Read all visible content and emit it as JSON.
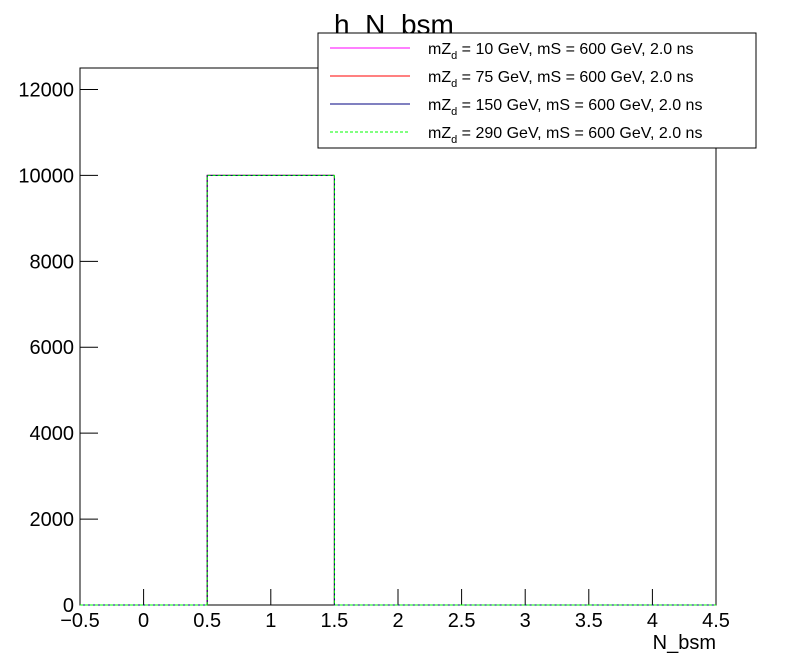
{
  "chart_data": {
    "type": "histogram",
    "title": "h_N_bsm",
    "x_label": "N_bsm",
    "bins": [
      -0.5,
      0.5,
      1.5,
      2.5,
      3.5,
      4.5
    ],
    "series": [
      {
        "name": "mZ_{d} = 10 GeV, mS = 600 GeV, 2.0 ns",
        "color": "#ff00ff",
        "dashed": false,
        "values": [
          0,
          10000,
          0,
          0,
          0
        ]
      },
      {
        "name": "mZ_{d} = 75 GeV, mS = 600 GeV, 2.0 ns",
        "color": "#ff0000",
        "dashed": false,
        "values": [
          0,
          10000,
          0,
          0,
          0
        ]
      },
      {
        "name": "mZ_{d} = 150 GeV, mS = 600 GeV, 2.0 ns",
        "color": "#000080",
        "dashed": false,
        "values": [
          0,
          10000,
          0,
          0,
          0
        ]
      },
      {
        "name": "mZ_{d} = 290 GeV, mS = 600 GeV, 2.0 ns",
        "color": "#00ff00",
        "dashed": true,
        "values": [
          0,
          10000,
          0,
          0,
          0
        ]
      }
    ],
    "xlim": [
      -0.5,
      4.5
    ],
    "xticks": [
      {
        "value": -0.5,
        "label": "−0.5"
      },
      0,
      0.5,
      1,
      1.5,
      2,
      2.5,
      3,
      3.5,
      4,
      4.5
    ],
    "ylim": [
      0,
      12500
    ],
    "yticks": [
      0,
      2000,
      4000,
      6000,
      8000,
      10000,
      12000
    ],
    "legend": "top-right"
  }
}
